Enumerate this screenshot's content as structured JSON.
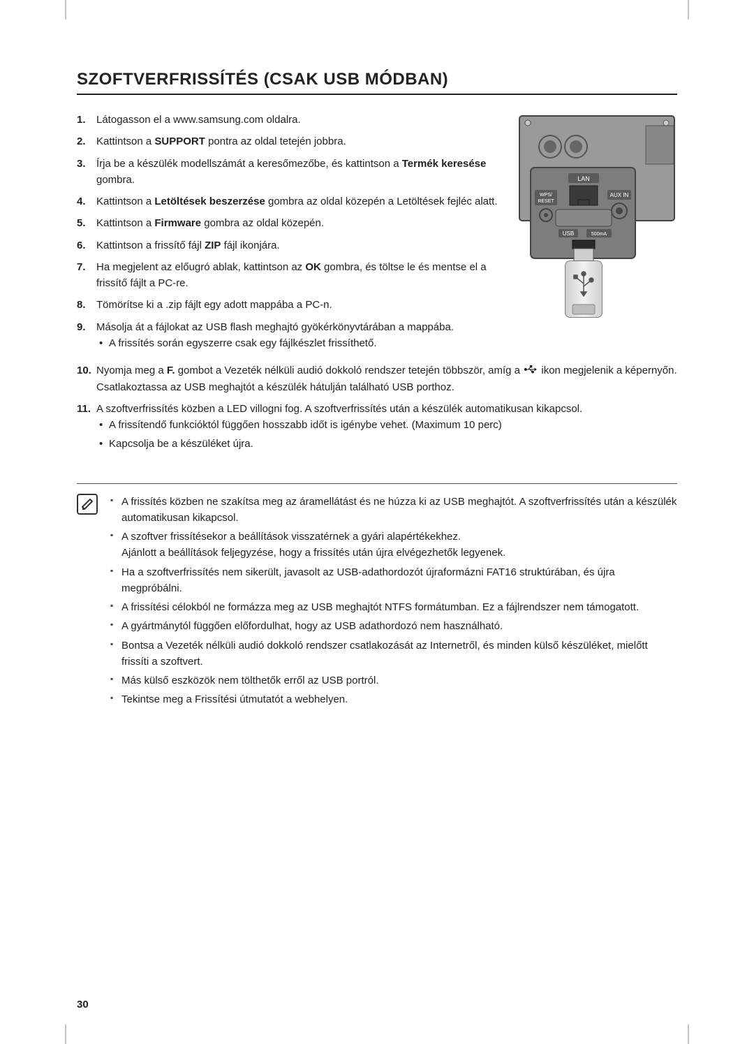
{
  "page": {
    "title": "SZOFTVERFRISSÍTÉS (CSAK USB MÓDBAN)",
    "page_number": "30",
    "colors": {
      "text": "#222222",
      "rule": "#222222",
      "note_rule": "#555555",
      "background": "#ffffff",
      "diagram_bg": "#8b8b8b",
      "diagram_dark": "#6d6d6d",
      "diagram_label_bg": "#5a5a5a",
      "diagram_label_text": "#ffffff"
    },
    "typography": {
      "title_fontsize": 24,
      "body_fontsize": 15,
      "line_height": 1.55
    }
  },
  "steps": [
    {
      "n": "1",
      "parts": [
        {
          "t": "Látogasson el a www.samsung.com oldalra."
        }
      ]
    },
    {
      "n": "2",
      "parts": [
        {
          "t": "Kattintson a "
        },
        {
          "t": "SUPPORT",
          "b": true
        },
        {
          "t": " pontra az oldal tetején jobbra."
        }
      ]
    },
    {
      "n": "3",
      "parts": [
        {
          "t": "Írja be a készülék modellszámát a keresőmezőbe, és kattintson a "
        },
        {
          "t": "Termék keresése",
          "b": true
        },
        {
          "t": " gombra."
        }
      ]
    },
    {
      "n": "4",
      "parts": [
        {
          "t": "Kattintson a "
        },
        {
          "t": "Letöltések beszerzése",
          "b": true
        },
        {
          "t": " gombra az oldal közepén a Letöltések fejléc alatt."
        }
      ]
    },
    {
      "n": "5",
      "parts": [
        {
          "t": "Kattintson a "
        },
        {
          "t": "Firmware",
          "b": true
        },
        {
          "t": " gombra az oldal közepén."
        }
      ]
    },
    {
      "n": "6",
      "parts": [
        {
          "t": "Kattintson a frissítő fájl "
        },
        {
          "t": "ZIP",
          "b": true
        },
        {
          "t": " fájl ikonjára."
        }
      ]
    },
    {
      "n": "7",
      "parts": [
        {
          "t": "Ha megjelent az előugró ablak, kattintson az "
        },
        {
          "t": "OK",
          "b": true
        },
        {
          "t": " gombra, és töltse le és mentse el a frissítő fájlt a PC-re."
        }
      ]
    },
    {
      "n": "8",
      "parts": [
        {
          "t": "Tömörítse ki a .zip fájlt egy adott mappába a PC-n."
        }
      ]
    },
    {
      "n": "9",
      "parts": [
        {
          "t": "Másolja át a fájlokat az USB flash meghajtó gyökérkönyvtárában a mappába."
        }
      ],
      "subs": [
        "A frissítés során egyszerre csak egy fájlkészlet frissíthető."
      ]
    },
    {
      "n": "10",
      "parts": [
        {
          "t": "Nyomja meg a "
        },
        {
          "t": "F.",
          "b": true
        },
        {
          "t": " gombot a Vezeték nélküli audió dokkoló rendszer tetején többször, amíg a "
        },
        {
          "icon": "usb"
        },
        {
          "t": " ikon megjelenik a képernyőn. Csatlakoztassa az USB meghajtót a készülék hátulján található USB porthoz."
        }
      ]
    },
    {
      "n": "11",
      "parts": [
        {
          "t": "A szoftverfrissítés közben a LED villogni fog. A szoftverfrissítés után a készülék automatikusan kikapcsol."
        }
      ],
      "subs": [
        "A frissítendő funkcióktól függően hosszabb időt is igénybe vehet. (Maximum 10 perc)",
        "Kapcsolja be a készüléket újra."
      ]
    }
  ],
  "diagram": {
    "labels": {
      "lan": "LAN",
      "wps": "WPS/\nRESET",
      "aux": "AUX IN",
      "usb": "USB",
      "power": "500mA"
    }
  },
  "notes": [
    "A frissítés közben ne szakítsa meg az áramellátást és ne húzza ki az USB meghajtót. A szoftverfrissítés után a készülék automatikusan kikapcsol.",
    "A szoftver frissítésekor a beállítások visszatérnek a gyári alapértékekhez.\nAjánlott a beállítások feljegyzése, hogy a frissítés után újra elvégezhetők legyenek.",
    "Ha a szoftverfrissítés nem sikerült, javasolt az USB-adathordozót újraformázni FAT16 struktúrában, és újra megpróbálni.",
    "A frissítési célokból ne formázza meg az USB meghajtót NTFS formátumban. Ez a fájlrendszer nem támogatott.",
    "A gyártmánytól függően előfordulhat, hogy az USB adathordozó nem használható.",
    "Bontsa a Vezeték nélküli audió dokkoló rendszer csatlakozását az Internetről, és minden külső készüléket, mielőtt frissíti a szoftvert.",
    "Más külső eszközök nem tölthetők erről az USB portról.",
    "Tekintse meg a Frissítési útmutatót a webhelyen."
  ]
}
